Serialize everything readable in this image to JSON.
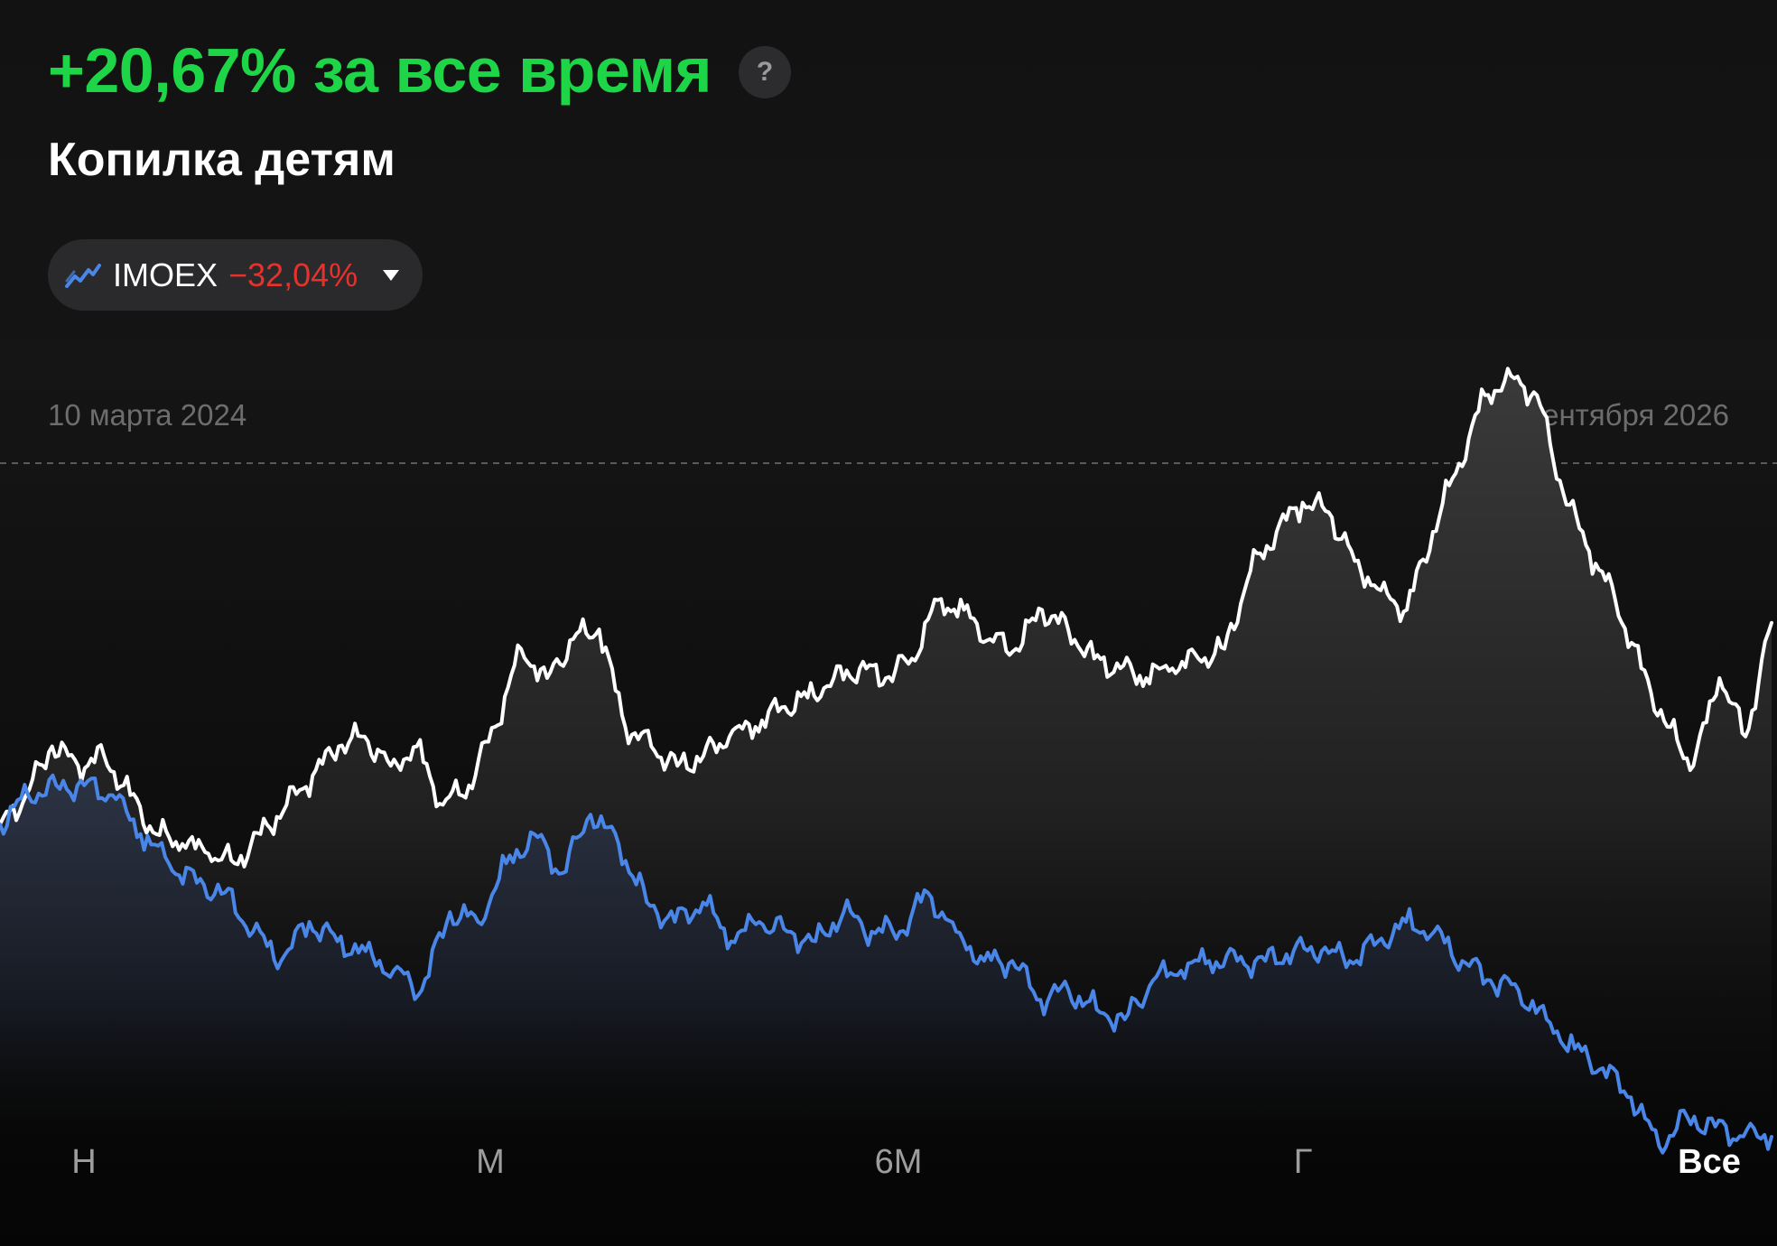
{
  "header": {
    "performance": "+20,67% за все время",
    "help_symbol": "?",
    "portfolio_name": "Копилка детям"
  },
  "compare": {
    "index_name": "IMOEX",
    "index_change": "−32,04%"
  },
  "dates": {
    "start": "10 марта 2024",
    "end": "5 сентября 2026"
  },
  "periods": [
    {
      "label": "Н",
      "active": false
    },
    {
      "label": "М",
      "active": false
    },
    {
      "label": "6М",
      "active": false
    },
    {
      "label": "Г",
      "active": false
    },
    {
      "label": "Все",
      "active": true
    }
  ],
  "colors": {
    "positive": "#1ed447",
    "negative": "#e5322d",
    "portfolio_line": "#ffffff",
    "index_line": "#4a86e8",
    "background": "#121212"
  },
  "chart_data": {
    "type": "line",
    "x_range": [
      "2024-03-10",
      "2026-09-05"
    ],
    "y_unit": "% change since start",
    "series": [
      {
        "name": "Копилка детям",
        "values": [
          0,
          3,
          8,
          6,
          7,
          3,
          -1,
          -2,
          -3,
          -4,
          -1,
          2,
          5,
          8,
          9,
          6,
          8,
          2,
          4,
          10,
          18,
          15,
          19,
          20,
          10,
          8,
          6,
          7,
          9,
          10,
          12,
          13,
          15,
          16,
          15,
          17,
          23,
          22,
          19,
          18,
          22,
          20,
          17,
          16,
          15,
          16,
          17,
          18,
          26,
          30,
          33,
          32,
          27,
          24,
          22,
          30,
          37,
          44,
          46,
          44,
          34,
          28,
          23,
          16,
          10,
          6,
          15,
          9,
          20.67
        ]
      },
      {
        "name": "IMOEX",
        "values": [
          0,
          3,
          4,
          4,
          3,
          -1,
          -4,
          -6,
          -7,
          -11,
          -14,
          -10,
          -12,
          -13,
          -15,
          -17,
          -9,
          -10,
          -4,
          -1,
          -5,
          1,
          -2,
          -8,
          -10,
          -8,
          -12,
          -10,
          -11,
          -12,
          -9,
          -11,
          -11,
          -7,
          -11,
          -14,
          -14,
          -18,
          -17,
          -19,
          -20,
          -16,
          -15,
          -14,
          -14,
          -14,
          -13,
          -13,
          -14,
          -12,
          -10,
          -11,
          -14,
          -16,
          -17,
          -20,
          -23,
          -25,
          -28,
          -33,
          -30,
          -31,
          -32,
          -32.04
        ]
      }
    ],
    "grid": false,
    "legend": "none"
  }
}
